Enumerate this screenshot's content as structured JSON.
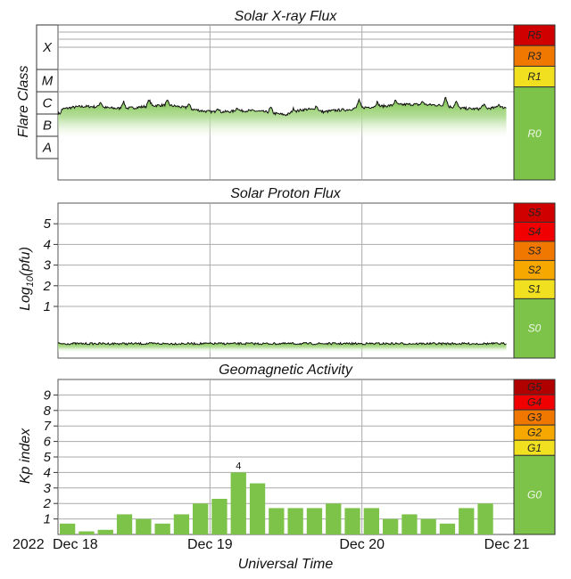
{
  "chart_data": [
    {
      "type": "area",
      "title": "Solar X-ray Flux",
      "ylabel": "Flare Class",
      "y_scale": "log",
      "class_labels": [
        "X",
        "M",
        "C",
        "B",
        "A"
      ],
      "scale_labels": [
        "R5",
        "R3",
        "R1",
        "R0"
      ],
      "baseline_class": "B",
      "series_color": "#7dc34a"
    },
    {
      "type": "area",
      "title": "Solar Proton Flux",
      "ylabel": "Log10(pfu)",
      "ylabel_main": "Log",
      "ylabel_sub": "10",
      "ylabel_tail": "(pfu)",
      "yticks": [
        "1",
        "2",
        "3",
        "4",
        "5"
      ],
      "ylim": [
        -1.5,
        6
      ],
      "scale_labels": [
        "S5",
        "S4",
        "S3",
        "S2",
        "S1",
        "S0"
      ],
      "baseline_value": -0.8
    },
    {
      "type": "bar",
      "title": "Geomagnetic Activity",
      "ylabel": "Kp index",
      "yticks": [
        "1",
        "2",
        "3",
        "4",
        "5",
        "6",
        "7",
        "8",
        "9"
      ],
      "ylim": [
        0,
        10
      ],
      "values": [
        0.7,
        0.2,
        0.3,
        1.3,
        1.0,
        0.7,
        1.3,
        2.0,
        2.3,
        4.0,
        3.3,
        1.7,
        1.7,
        1.7,
        2.0,
        1.7,
        1.7,
        1.0,
        1.3,
        1.0,
        0.7,
        1.7,
        2.0
      ],
      "value_label": "4",
      "scale_labels": [
        "G5",
        "G4",
        "G3",
        "G2",
        "G1",
        "G0"
      ],
      "bar_color": "#7dc34a"
    }
  ],
  "x_axis": {
    "label": "Universal Time",
    "year": "2022",
    "ticks": [
      "Dec 18",
      "Dec 19",
      "Dec 20",
      "Dec 21"
    ],
    "gridlines": [
      "Dec 19",
      "Dec 20"
    ]
  },
  "colors": {
    "scale": {
      "R5": "#d00000",
      "R3": "#f07800",
      "R1": "#f0e020",
      "R0": "#7dc34a",
      "S5": "#d00000",
      "S4": "#f00000",
      "S3": "#f07800",
      "S2": "#f7a800",
      "S1": "#f0e020",
      "S0": "#7dc34a",
      "G5": "#b00000",
      "G4": "#f00000",
      "G3": "#f07800",
      "G2": "#f7a800",
      "G1": "#f0e020",
      "G0": "#7dc34a"
    }
  }
}
